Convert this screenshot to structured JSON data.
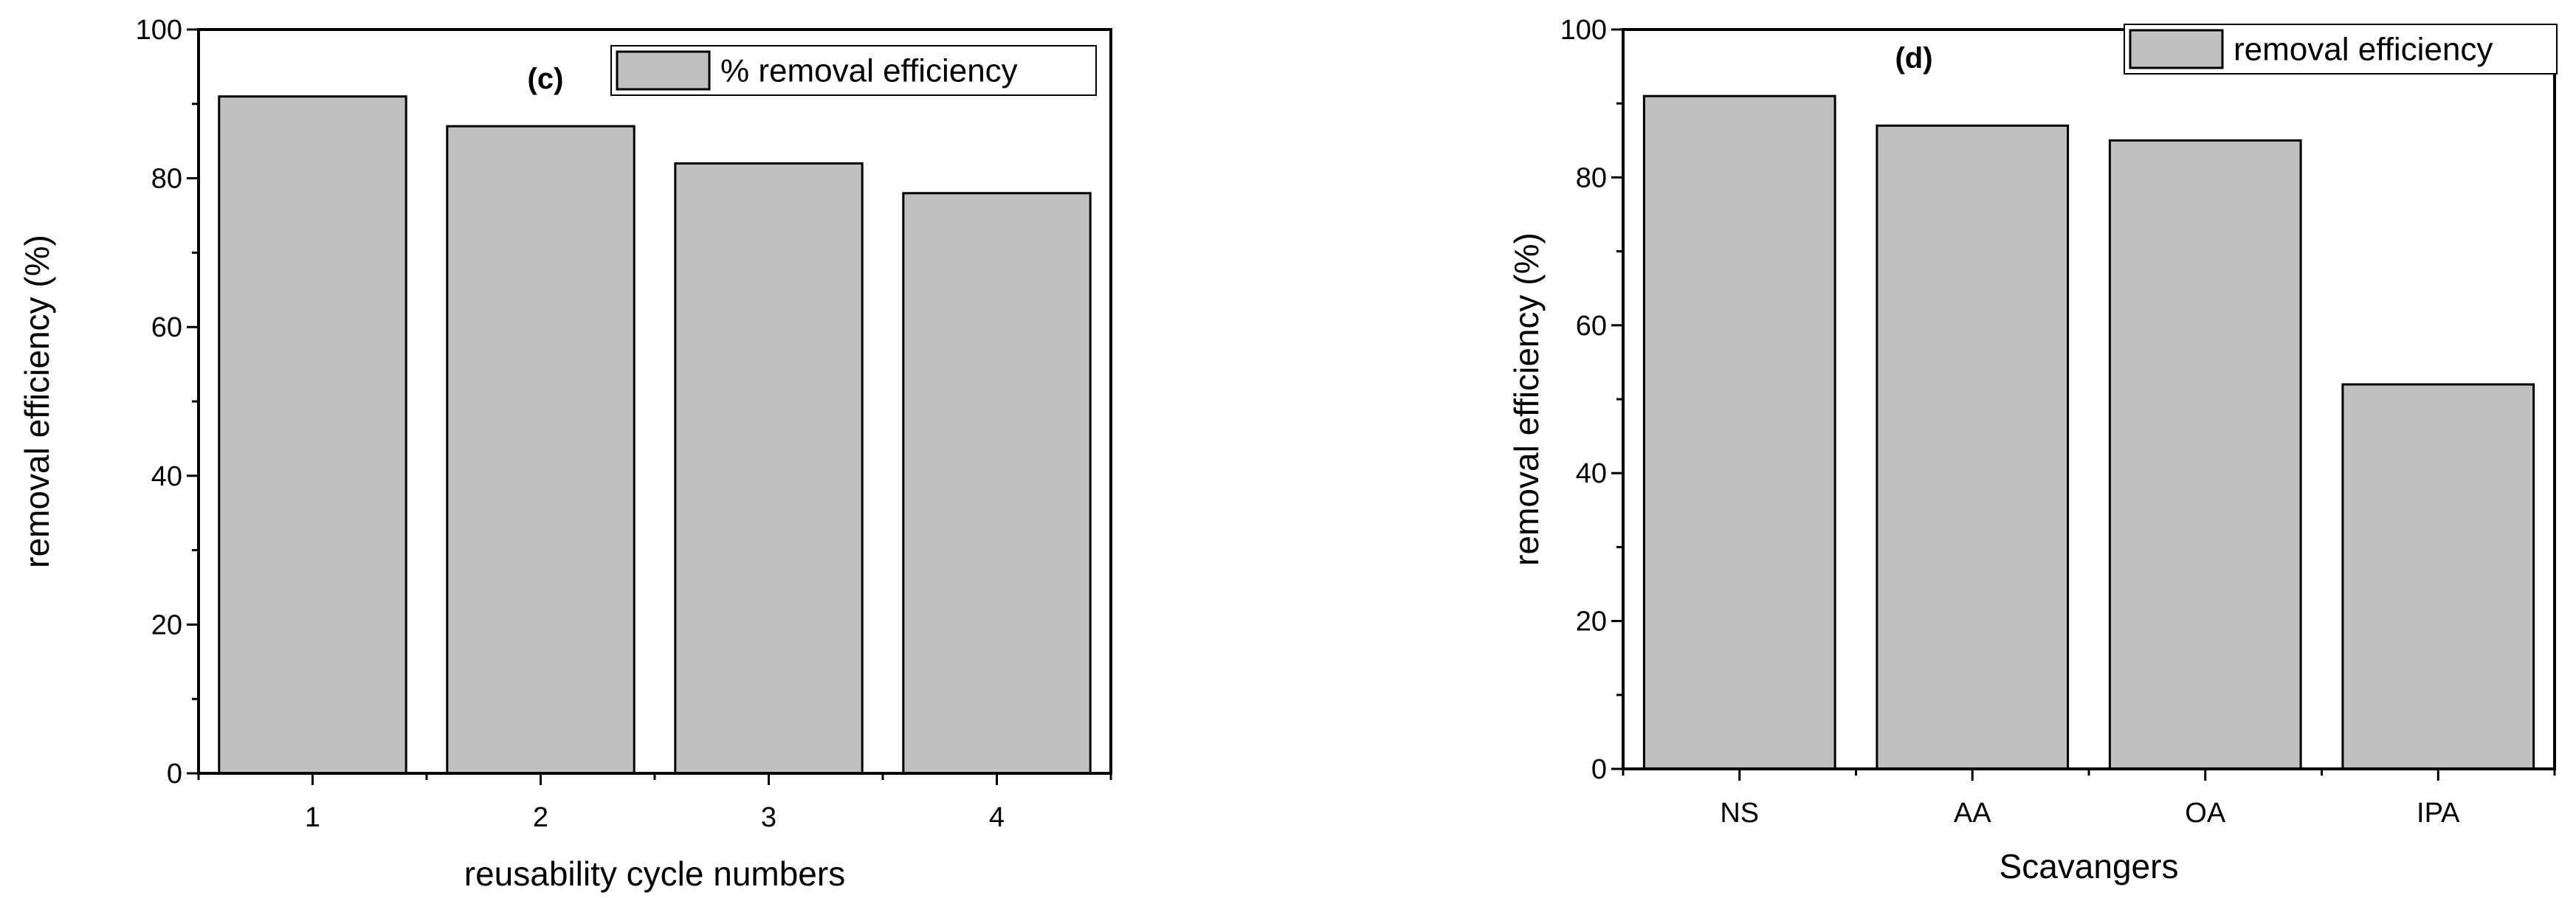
{
  "chart_data": [
    {
      "type": "bar",
      "panel_label": "(c)",
      "categories": [
        "1",
        "2",
        "3",
        "4"
      ],
      "series": [
        {
          "name": "% removal efficiency",
          "values": [
            91,
            87,
            82,
            78
          ]
        }
      ],
      "xlabel": "reusability cycle numbers",
      "ylabel": "removal efficiency (%)",
      "ylim": [
        0,
        100
      ],
      "yticks": [
        "0",
        "20",
        "40",
        "60",
        "80",
        "100"
      ],
      "grid": false,
      "legend": "top-right",
      "bar_color": "#c0c0c0"
    },
    {
      "type": "bar",
      "panel_label": "(d)",
      "categories": [
        "NS",
        "AA",
        "OA",
        "IPA"
      ],
      "series": [
        {
          "name": "removal efficiency",
          "values": [
            91,
            87,
            85,
            52
          ]
        }
      ],
      "xlabel": "Scavangers",
      "ylabel": "removal efficiency (%)",
      "ylim": [
        0,
        100
      ],
      "yticks": [
        "0",
        "20",
        "40",
        "60",
        "80",
        "100"
      ],
      "grid": false,
      "legend": "top-right",
      "bar_color": "#c0c0c0"
    }
  ]
}
